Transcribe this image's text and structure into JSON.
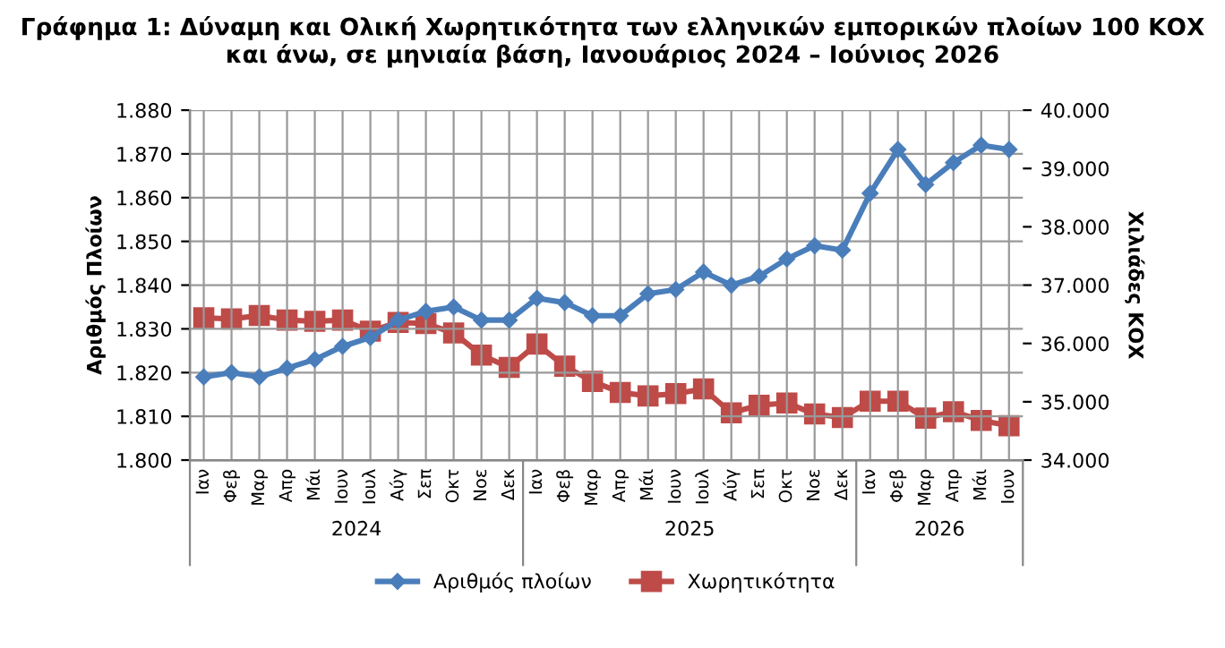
{
  "chart_data": {
    "type": "line",
    "title": "Γράφημα 1: Δύναμη και Ολική Χωρητικότητα των ελληνικών εμπορικών πλοίων 100 ΚΟΧ\nκαι άνω, σε μηνιαία βάση, Ιανουάριος 2024 – Ιούνιος 2026",
    "ylabel": "Αριθμός Πλοίων",
    "y2label": "Χιλιάδες ΚΟΧ",
    "categories": [
      "Ιαν",
      "Φεβ",
      "Μαρ",
      "Απρ",
      "Μάι",
      "Ιουν",
      "Ιουλ",
      "Αύγ",
      "Σεπ",
      "Οκτ",
      "Νοε",
      "Δεκ",
      "Ιαν",
      "Φεβ",
      "Μαρ",
      "Απρ",
      "Μάι",
      "Ιουν",
      "Ιουλ",
      "Αύγ",
      "Σεπ",
      "Οκτ",
      "Νοε",
      "Δεκ",
      "Ιαν",
      "Φεβ",
      "Μαρ",
      "Απρ",
      "Μάι",
      "Ιουν"
    ],
    "annotations": [
      "2024",
      "2025",
      "2026"
    ],
    "series": [
      {
        "name": "Αριθμός πλοίων",
        "color": "#4a7ebb",
        "marker": "diamond",
        "values": [
          1819,
          1820,
          1819,
          1821,
          1823,
          1826,
          1828,
          1832,
          1834,
          1835,
          1832,
          1832,
          1837,
          1836,
          1833,
          1833,
          1838,
          1839,
          1843,
          1840,
          1842,
          1846,
          1849,
          1848,
          1861,
          1871,
          1863,
          1868,
          1872,
          1871
        ]
      },
      {
        "name": "Χωρητικότητα",
        "color": "#be4b48",
        "marker": "square",
        "axis": "y2",
        "values": [
          36440,
          36420,
          36480,
          36400,
          36380,
          36400,
          36210,
          36360,
          36340,
          36180,
          35800,
          35590,
          35990,
          35610,
          35350,
          35160,
          35100,
          35140,
          35220,
          34810,
          34940,
          34980,
          34790,
          34730,
          35010,
          35010,
          34720,
          34830,
          34680,
          34590
        ]
      }
    ],
    "ylim": [
      1800,
      1880
    ],
    "yticks": [
      {
        "value": 1800,
        "label": "1.800"
      },
      {
        "value": 1810,
        "label": "1.810"
      },
      {
        "value": 1820,
        "label": "1.820"
      },
      {
        "value": 1830,
        "label": "1.830"
      },
      {
        "value": 1840,
        "label": "1.840"
      },
      {
        "value": 1850,
        "label": "1.850"
      },
      {
        "value": 1860,
        "label": "1.860"
      },
      {
        "value": 1870,
        "label": "1.870"
      },
      {
        "value": 1880,
        "label": "1.880"
      }
    ],
    "y2lim": [
      34000,
      40000
    ],
    "y2ticks": [
      {
        "value": 34000,
        "label": "34.000"
      },
      {
        "value": 35000,
        "label": "35.000"
      },
      {
        "value": 36000,
        "label": "36.000"
      },
      {
        "value": 37000,
        "label": "37.000"
      },
      {
        "value": 38000,
        "label": "38.000"
      },
      {
        "value": 39000,
        "label": "39.000"
      },
      {
        "value": 40000,
        "label": "40.000"
      }
    ],
    "grid": true,
    "legend": "bottom"
  }
}
